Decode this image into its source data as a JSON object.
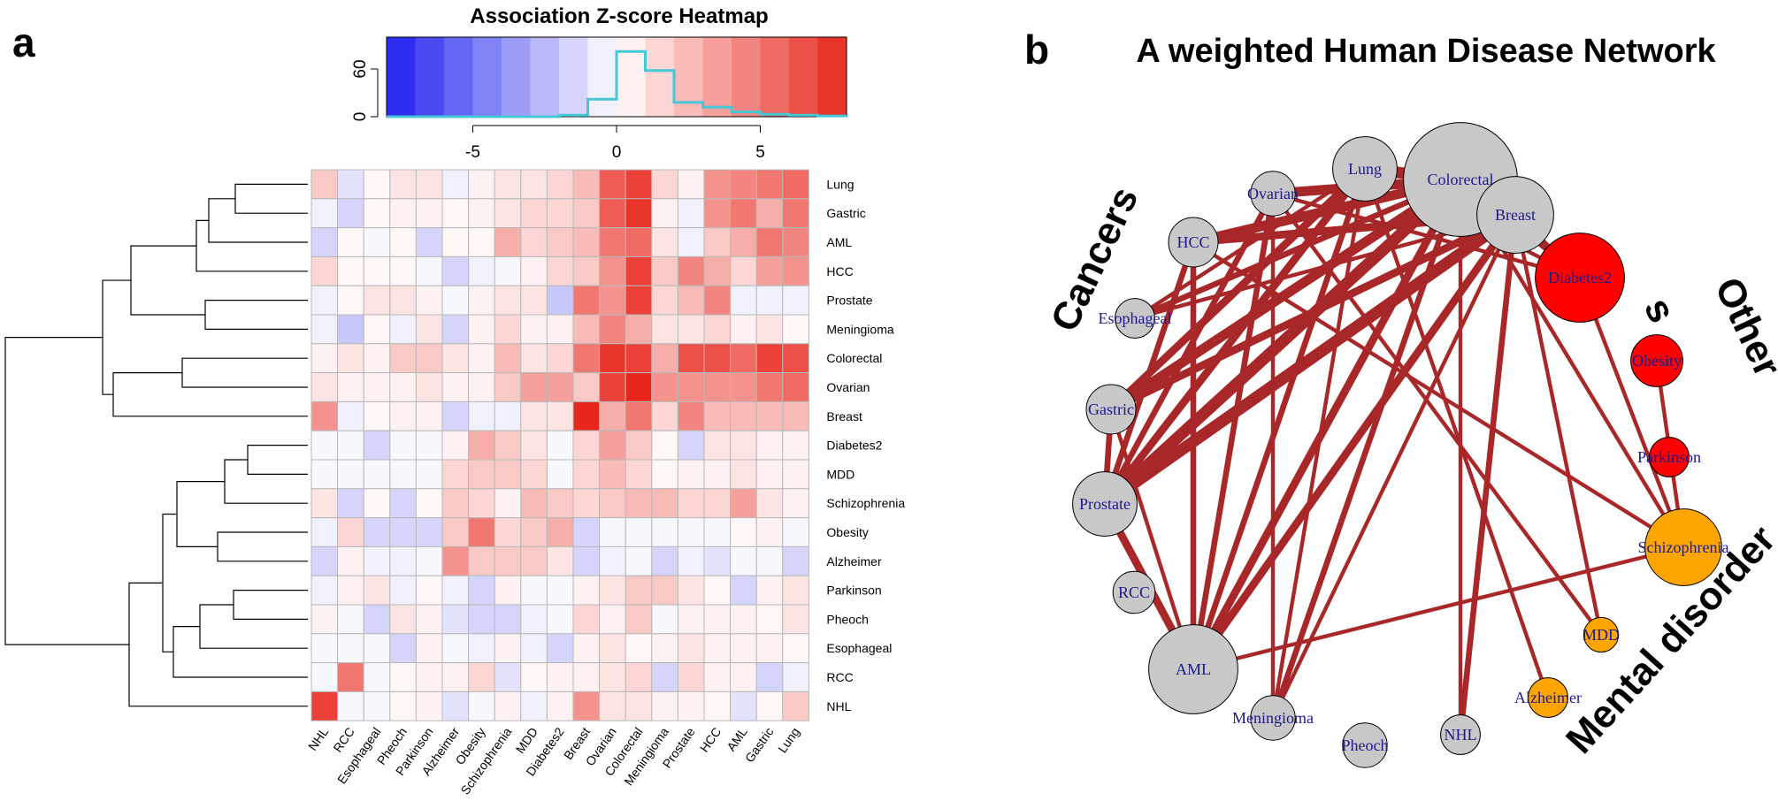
{
  "panel_a": {
    "letter": "a",
    "title": "Association Z-score Heatmap"
  },
  "panel_b": {
    "letter": "b",
    "title": "A weighted Human Disease Network"
  },
  "colors": {
    "neg": "#2020f0",
    "zero": "#ffffff",
    "pos": "#e8261c",
    "edge": "#a8282a",
    "node_gray": "#c8c8c8",
    "node_red": "#ff0000",
    "node_orange": "#ffa500",
    "label_text": "#1a1a8c",
    "cancers": "#8c8c8c",
    "others": "#ff1a1a",
    "mental": "#f2c200"
  },
  "chart_data": [
    {
      "type": "heatmap",
      "title": "Association Z-score Heatmap",
      "key": {
        "type": "histogram",
        "xlim": [
          -8,
          8
        ],
        "x_ticks": [
          -5,
          0,
          5
        ],
        "x_tick_labels": [
          "-5",
          "0",
          "5"
        ],
        "ylim": [
          0,
          100
        ],
        "y_ticks": [
          0,
          60
        ],
        "y_tick_labels": [
          "0",
          "60"
        ],
        "bins": [
          -8,
          -7,
          -6,
          -5,
          -4,
          -3,
          -2,
          -1,
          0,
          1,
          2,
          3,
          4,
          5,
          6,
          7,
          8
        ],
        "counts": [
          0,
          0,
          0,
          0,
          0,
          0,
          2,
          22,
          82,
          58,
          18,
          12,
          6,
          3,
          2,
          1
        ]
      },
      "rows": [
        "Lung",
        "Gastric",
        "AML",
        "HCC",
        "Prostate",
        "Meningioma",
        "Colorectal",
        "Ovarian",
        "Breast",
        "Diabetes2",
        "MDD",
        "Schizophrenia",
        "Obesity",
        "Alzheimer",
        "Parkinson",
        "Pheoch",
        "Esophageal",
        "RCC",
        "NHL"
      ],
      "columns": [
        "NHL",
        "RCC",
        "Esophageal",
        "Pheoch",
        "Parkinson",
        "Alzheimer",
        "Obesity",
        "Schizophrenia",
        "MDD",
        "Diabetes2",
        "Breast",
        "Ovarian",
        "Colorectal",
        "Meningioma",
        "Prostate",
        "HCC",
        "AML",
        "Gastric",
        "Lung"
      ],
      "values": [
        [
          2,
          -1,
          0.3,
          1,
          1,
          -0.5,
          0.5,
          1,
          1,
          1.5,
          2.5,
          6,
          7,
          1.5,
          0.5,
          4,
          4.5,
          5,
          5.5
        ],
        [
          -0.5,
          -1.5,
          0.3,
          0.5,
          0.5,
          0.3,
          0.5,
          1,
          1.5,
          1.5,
          2,
          6,
          7.5,
          0.5,
          -0.5,
          4,
          5,
          3,
          5
        ],
        [
          -1.5,
          0.3,
          -0.3,
          0.3,
          -1.5,
          0.3,
          0.3,
          3,
          1.5,
          2,
          2.5,
          5,
          5.5,
          1,
          -0.5,
          2,
          3,
          5,
          4.5
        ],
        [
          1.5,
          0.3,
          0.3,
          0.3,
          -0.3,
          -1.5,
          -0.5,
          -0.3,
          0.5,
          1.5,
          2,
          4,
          7,
          2,
          4.5,
          3,
          1.5,
          3.5,
          4
        ],
        [
          -0.5,
          0.3,
          1,
          1,
          0.5,
          -0.3,
          0.5,
          1,
          1,
          -2,
          5,
          4,
          7,
          1.5,
          2.5,
          4.5,
          -0.5,
          -0.5,
          -0.5
        ],
        [
          -0.5,
          -2,
          0.3,
          -0.5,
          1,
          -1.5,
          0.5,
          1.5,
          0.5,
          0.5,
          2.5,
          4.5,
          3,
          1,
          1,
          1.5,
          0.5,
          1,
          0.3
        ],
        [
          0.5,
          1,
          0.5,
          2,
          2,
          1,
          0.5,
          2.5,
          1,
          1.5,
          5,
          7.5,
          7,
          3,
          6.5,
          6.5,
          5.5,
          7,
          6.5
        ],
        [
          1,
          0.5,
          0.5,
          0.5,
          1,
          0.5,
          0.5,
          2,
          3.5,
          3.5,
          2,
          7,
          8,
          4,
          4,
          4,
          4,
          5,
          5.5
        ],
        [
          4,
          -0.5,
          0.3,
          0.5,
          0.5,
          -1.5,
          -0.5,
          -0.5,
          1,
          1,
          8,
          3,
          5,
          1.5,
          4.5,
          2.5,
          2.5,
          2.5,
          2.5
        ],
        [
          -0.3,
          -0.3,
          -1.5,
          -0.3,
          -0.3,
          0.5,
          3,
          2,
          1,
          -0.3,
          1.5,
          3.5,
          2,
          0.3,
          -1.5,
          1,
          1,
          0.5,
          0.5
        ],
        [
          -0.3,
          -0.3,
          -0.3,
          -0.3,
          -0.3,
          1.5,
          2,
          2,
          1.5,
          -0.3,
          1.5,
          2.5,
          1.5,
          0.3,
          0.5,
          0.5,
          1,
          0.5,
          0.5
        ],
        [
          1,
          -1.5,
          0.3,
          -1.5,
          0.3,
          2,
          1.5,
          0.5,
          2.5,
          2,
          1.5,
          2,
          2.5,
          2.5,
          1.5,
          1.5,
          3.5,
          1,
          0.5
        ],
        [
          -0.5,
          1.5,
          -1.5,
          -1.5,
          -1.5,
          2,
          5,
          1.5,
          2,
          3,
          -1.5,
          -0.3,
          -0.3,
          -0.3,
          -0.3,
          -0.3,
          0.3,
          0.5,
          -0.3
        ],
        [
          -1.5,
          0.5,
          -0.5,
          -0.5,
          -0.3,
          4,
          2,
          2,
          2,
          1,
          -1.5,
          -0.5,
          -0.3,
          -1.5,
          -0.5,
          -1,
          -0.3,
          -0.3,
          -1.5
        ],
        [
          -0.5,
          0.5,
          1,
          -0.5,
          0.3,
          -0.5,
          -1.5,
          0.5,
          -0.3,
          -0.3,
          0.5,
          1,
          2,
          2,
          1,
          0.3,
          -1.5,
          0.5,
          1
        ],
        [
          0.5,
          -0.3,
          -1.5,
          1,
          0.5,
          -1,
          -1.5,
          -1.5,
          -0.5,
          -0.3,
          1.5,
          0.5,
          2,
          -0.3,
          0.5,
          0.5,
          0.5,
          0.3,
          1
        ],
        [
          -0.3,
          -0.3,
          -0.3,
          -1.5,
          0.5,
          -0.3,
          -0.5,
          0.5,
          -0.5,
          -1.5,
          0.5,
          1,
          0.3,
          0.5,
          1,
          0.5,
          0.5,
          0.5,
          0.3
        ],
        [
          -0.3,
          5,
          -0.3,
          0.3,
          0.5,
          0.5,
          1.5,
          -1,
          0.3,
          0.5,
          0.5,
          1,
          1.5,
          -1.5,
          1.5,
          0.5,
          0.5,
          -1.5,
          -0.5
        ],
        [
          7,
          -0.3,
          -0.3,
          0.3,
          0.5,
          -1,
          -0.3,
          0.5,
          -0.5,
          0.5,
          4,
          1,
          1,
          0.5,
          0.5,
          0.3,
          -1,
          0.3,
          2
        ]
      ]
    },
    {
      "type": "network",
      "title": "A weighted Human Disease Network",
      "groups": [
        {
          "name": "Cancers",
          "label": "Cancers",
          "color_key": "cancers"
        },
        {
          "name": "Others",
          "label_line1": "Other",
          "label_line2": "s",
          "color_key": "others"
        },
        {
          "name": "Mental disorder",
          "label": "Mental disorder",
          "color_key": "mental"
        }
      ],
      "nodes": [
        {
          "name": "Lung",
          "group": "Cancers",
          "size": 2.6
        },
        {
          "name": "Colorectal",
          "group": "Cancers",
          "size": 4.6
        },
        {
          "name": "Breast",
          "group": "Cancers",
          "size": 3.1
        },
        {
          "name": "Ovarian",
          "group": "Cancers",
          "size": 1.8
        },
        {
          "name": "HCC",
          "group": "Cancers",
          "size": 2.0
        },
        {
          "name": "Esophageal",
          "group": "Cancers",
          "size": 1.6
        },
        {
          "name": "Gastric",
          "group": "Cancers",
          "size": 2.0
        },
        {
          "name": "Prostate",
          "group": "Cancers",
          "size": 2.6
        },
        {
          "name": "RCC",
          "group": "Cancers",
          "size": 1.7
        },
        {
          "name": "AML",
          "group": "Cancers",
          "size": 3.6
        },
        {
          "name": "Meningioma",
          "group": "Cancers",
          "size": 1.8
        },
        {
          "name": "Pheoch",
          "group": "Cancers",
          "size": 1.8
        },
        {
          "name": "NHL",
          "group": "Cancers",
          "size": 1.6
        },
        {
          "name": "Diabetes2",
          "group": "Others",
          "size": 3.6
        },
        {
          "name": "Obesity",
          "group": "Others",
          "size": 2.1
        },
        {
          "name": "Parkinson",
          "group": "Others",
          "size": 1.6
        },
        {
          "name": "Schizophrenia",
          "group": "Mental disorder",
          "size": 3.1
        },
        {
          "name": "MDD",
          "group": "Mental disorder",
          "size": 1.4
        },
        {
          "name": "Alzheimer",
          "group": "Mental disorder",
          "size": 1.6
        }
      ],
      "edges": [
        {
          "source": "Lung",
          "target": "Colorectal",
          "weight": 6
        },
        {
          "source": "Colorectal",
          "target": "Breast",
          "weight": 7
        },
        {
          "source": "Ovarian",
          "target": "Colorectal",
          "weight": 5
        },
        {
          "source": "HCC",
          "target": "Colorectal",
          "weight": 5
        },
        {
          "source": "HCC",
          "target": "Breast",
          "weight": 4
        },
        {
          "source": "Gastric",
          "target": "Colorectal",
          "weight": 5
        },
        {
          "source": "Gastric",
          "target": "Breast",
          "weight": 4
        },
        {
          "source": "Gastric",
          "target": "Lung",
          "weight": 4
        },
        {
          "source": "Prostate",
          "target": "Colorectal",
          "weight": 6
        },
        {
          "source": "Prostate",
          "target": "Breast",
          "weight": 6
        },
        {
          "source": "Prostate",
          "target": "Lung",
          "weight": 4
        },
        {
          "source": "Prostate",
          "target": "Ovarian",
          "weight": 3
        },
        {
          "source": "Prostate",
          "target": "HCC",
          "weight": 3
        },
        {
          "source": "Prostate",
          "target": "Gastric",
          "weight": 3
        },
        {
          "source": "Esophageal",
          "target": "Colorectal",
          "weight": 3
        },
        {
          "source": "Esophageal",
          "target": "Breast",
          "weight": 2
        },
        {
          "source": "Esophageal",
          "target": "Lung",
          "weight": 2
        },
        {
          "source": "AML",
          "target": "Colorectal",
          "weight": 4
        },
        {
          "source": "AML",
          "target": "Breast",
          "weight": 4
        },
        {
          "source": "AML",
          "target": "Lung",
          "weight": 3
        },
        {
          "source": "AML",
          "target": "Ovarian",
          "weight": 3
        },
        {
          "source": "AML",
          "target": "HCC",
          "weight": 3
        },
        {
          "source": "AML",
          "target": "Prostate",
          "weight": 4
        },
        {
          "source": "AML",
          "target": "Gastric",
          "weight": 2
        },
        {
          "source": "AML",
          "target": "Schizophrenia",
          "weight": 2
        },
        {
          "source": "Meningioma",
          "target": "Colorectal",
          "weight": 3
        },
        {
          "source": "Meningioma",
          "target": "Lung",
          "weight": 2
        },
        {
          "source": "Meningioma",
          "target": "Breast",
          "weight": 2
        },
        {
          "source": "Meningioma",
          "target": "Ovarian",
          "weight": 2
        },
        {
          "source": "NHL",
          "target": "Breast",
          "weight": 3
        },
        {
          "source": "NHL",
          "target": "Colorectal",
          "weight": 2
        },
        {
          "source": "Diabetes2",
          "target": "Breast",
          "weight": 3
        },
        {
          "source": "Diabetes2",
          "target": "Colorectal",
          "weight": 2
        },
        {
          "source": "Diabetes2",
          "target": "Lung",
          "weight": 2
        },
        {
          "source": "Diabetes2",
          "target": "Ovarian",
          "weight": 2
        },
        {
          "source": "Diabetes2",
          "target": "Schizophrenia",
          "weight": 2
        },
        {
          "source": "Obesity",
          "target": "Schizophrenia",
          "weight": 2
        },
        {
          "source": "Breast",
          "target": "MDD",
          "weight": 2
        },
        {
          "source": "HCC",
          "target": "Schizophrenia",
          "weight": 2
        },
        {
          "source": "Colorectal",
          "target": "Schizophrenia",
          "weight": 2
        },
        {
          "source": "Ovarian",
          "target": "MDD",
          "weight": 2
        },
        {
          "source": "Lung",
          "target": "Alzheimer",
          "weight": 2
        }
      ]
    }
  ]
}
